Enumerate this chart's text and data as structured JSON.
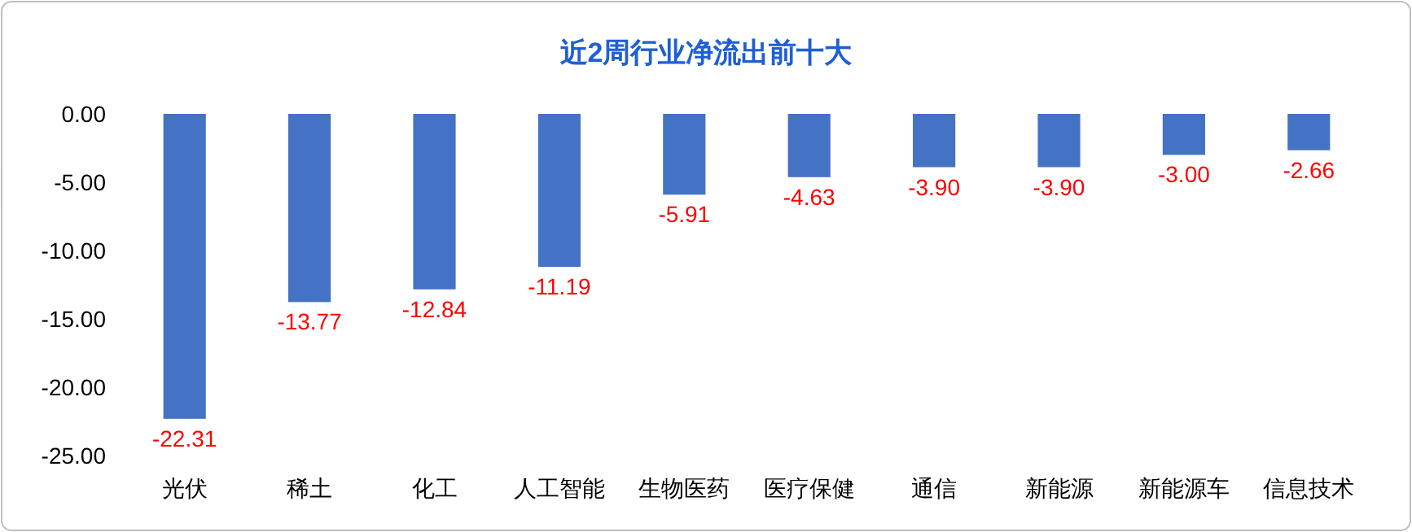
{
  "chart_data": {
    "type": "bar",
    "title": "近2周行业净流出前十大",
    "categories": [
      "光伏",
      "稀土",
      "化工",
      "人工智能",
      "生物医药",
      "医疗保健",
      "通信",
      "新能源",
      "新能源车",
      "信息技术"
    ],
    "values": [
      -22.31,
      -13.77,
      -12.84,
      -11.19,
      -5.91,
      -4.63,
      -3.9,
      -3.9,
      -3.0,
      -2.66
    ],
    "value_labels": [
      "-22.31",
      "-13.77",
      "-12.84",
      "-11.19",
      "-5.91",
      "-4.63",
      "-3.90",
      "-3.90",
      "-3.00",
      "-2.66"
    ],
    "color": "#4472c4",
    "ylim": [
      -25,
      0
    ],
    "yticks": [
      {
        "value": 0,
        "label": "0.00"
      },
      {
        "value": -5,
        "label": "-5.00"
      },
      {
        "value": -10,
        "label": "-10.00"
      },
      {
        "value": -15,
        "label": "-15.00"
      },
      {
        "value": -20,
        "label": "-20.00"
      },
      {
        "value": -25,
        "label": "-25.00"
      }
    ],
    "grid": false
  }
}
